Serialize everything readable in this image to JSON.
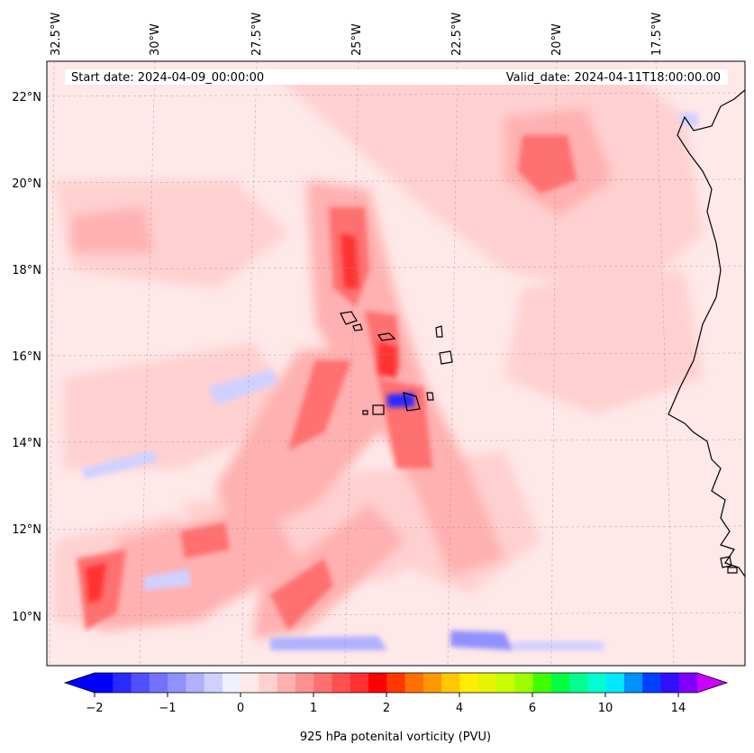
{
  "header": {
    "start_date": "Start date: 2024-04-09_00:00:00",
    "valid_date": "Valid_date: 2024-04-11T18:00:00.00"
  },
  "map": {
    "lon_labels": [
      "32.5°W",
      "30°W",
      "27.5°W",
      "25°W",
      "22.5°W",
      "20°W",
      "17.5°W"
    ],
    "lat_labels": [
      "22°N",
      "20°N",
      "18°N",
      "16°N",
      "14°N",
      "12°N",
      "10°N"
    ],
    "background_color": "#ffe8e8",
    "coastline_color": "#000000"
  },
  "colorbar": {
    "label": "925 hPa potenital vorticity (PVU)",
    "tick_labels": [
      "−2",
      "−1",
      "0",
      "1",
      "2",
      "4",
      "6",
      "10",
      "14"
    ],
    "colors": [
      "#0000ff",
      "#2a2aff",
      "#5050ff",
      "#7272ff",
      "#9090ff",
      "#b0b0ff",
      "#d0d0ff",
      "#f0f0ff",
      "#ffe8e8",
      "#ffd0d0",
      "#ffb0b0",
      "#ff9090",
      "#ff7070",
      "#ff5050",
      "#ff3030",
      "#ff0000",
      "#ff3800",
      "#ff7000",
      "#ff9800",
      "#ffc800",
      "#ffee00",
      "#e4f500",
      "#c8ff00",
      "#9cff00",
      "#40ff00",
      "#00ff40",
      "#00ff90",
      "#00ffd0",
      "#00e8ff",
      "#0090ff",
      "#0040ff",
      "#3010ff",
      "#8000ff"
    ],
    "extend_min_color": "#0000ff",
    "extend_max_color": "#cc00ff"
  }
}
